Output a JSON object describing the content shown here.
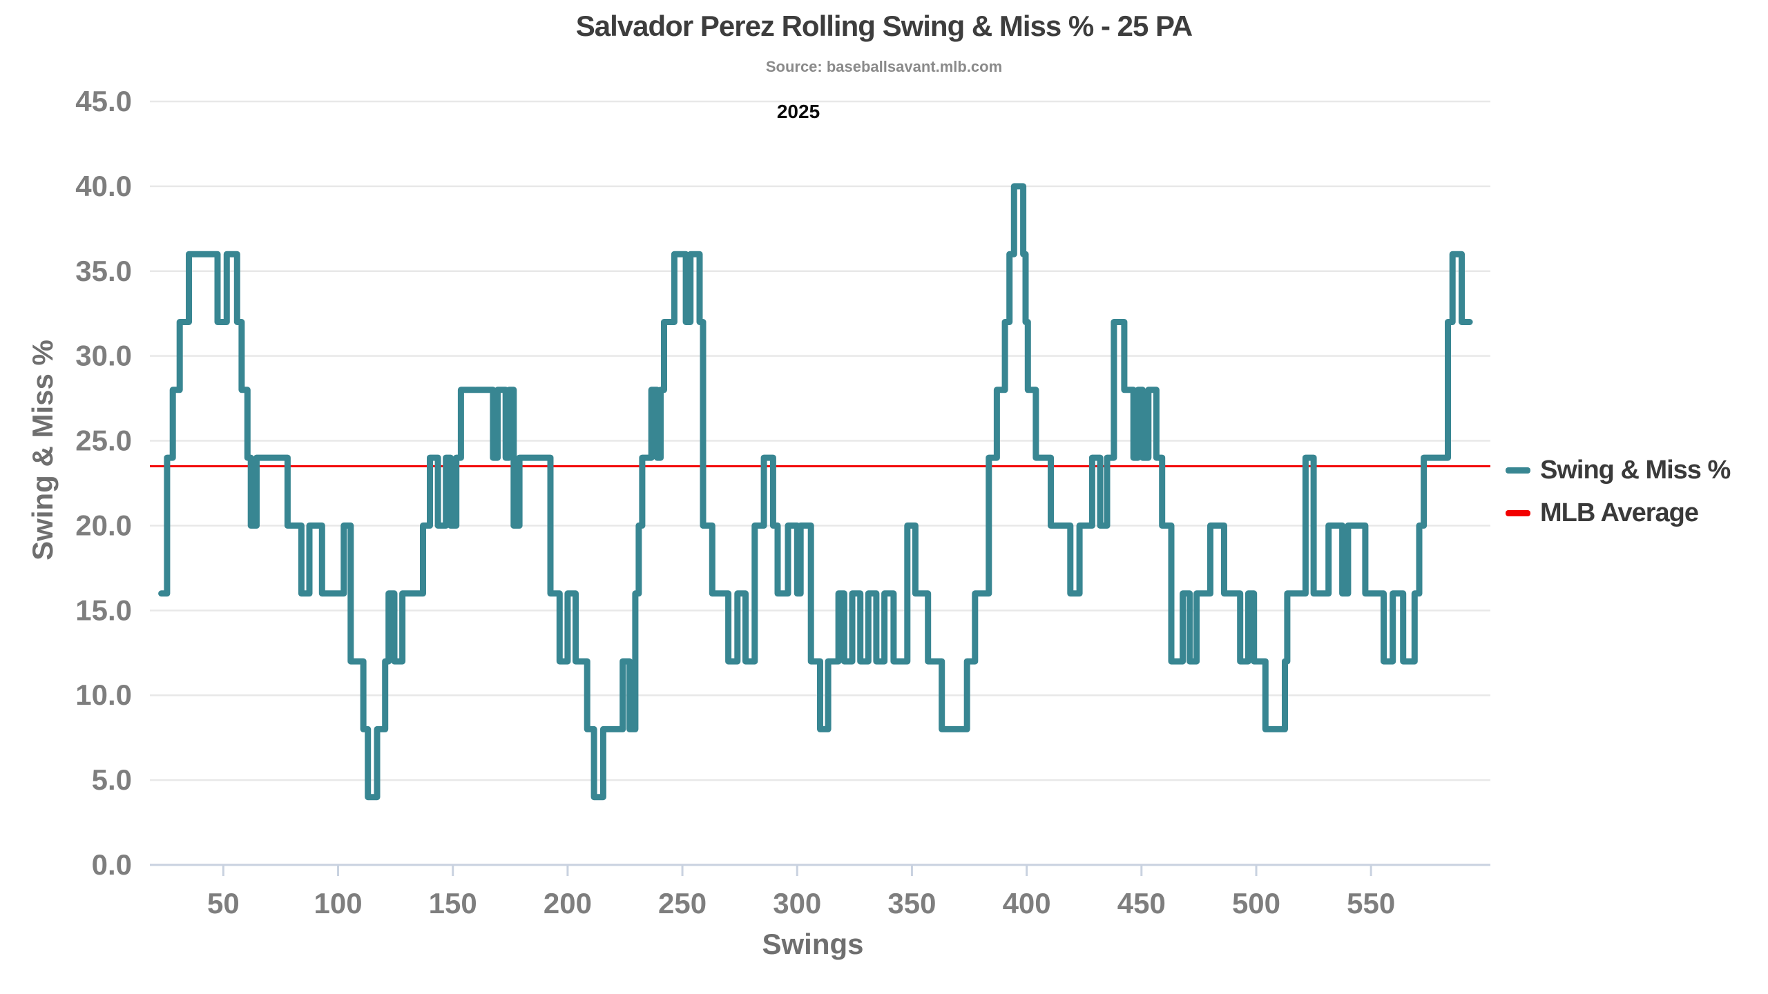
{
  "header": {
    "title": "Salvador Perez Rolling Swing & Miss % - 25 PA",
    "subtitle": "Source: baseballsavant.mlb.com",
    "year_label": "2025"
  },
  "legend": {
    "series_label": "Swing & Miss %",
    "average_label": "MLB Average"
  },
  "colors": {
    "series": "#388692",
    "average": "#f20000",
    "grid": "#e8e8e8",
    "axis": "#c9d2e0",
    "tick_label": "#7e7e7e",
    "title": "#3d3d3d"
  },
  "chart_data": {
    "type": "line",
    "step": "after",
    "title": "Salvador Perez Rolling Swing & Miss % - 25 PA",
    "subtitle": "Source: baseballsavant.mlb.com",
    "annotation": "2025",
    "xlabel": "Swings",
    "ylabel": "Swing & Miss %",
    "xlim": [
      18,
      602
    ],
    "ylim": [
      0,
      45
    ],
    "xticks": [
      50,
      100,
      150,
      200,
      250,
      300,
      350,
      400,
      450,
      500,
      550
    ],
    "yticks": [
      0,
      5,
      10,
      15,
      20,
      25,
      30,
      35,
      40,
      45
    ],
    "ytick_format_decimals": 1,
    "grid": "horizontal",
    "legend_position": "right",
    "mlb_average": 23.5,
    "series_name": "Swing & Miss %",
    "average_name": "MLB Average",
    "segments": [
      [
        23,
        16
      ],
      [
        25.5,
        24
      ],
      [
        28,
        28
      ],
      [
        31,
        32
      ],
      [
        35,
        36
      ],
      [
        47.5,
        32
      ],
      [
        51.5,
        36
      ],
      [
        56,
        32
      ],
      [
        58,
        28
      ],
      [
        60.5,
        24
      ],
      [
        62,
        20
      ],
      [
        64.5,
        24
      ],
      [
        78,
        20
      ],
      [
        84,
        16
      ],
      [
        87.5,
        20
      ],
      [
        93,
        16
      ],
      [
        102.5,
        20
      ],
      [
        105.5,
        12
      ],
      [
        111,
        8
      ],
      [
        113,
        4
      ],
      [
        117,
        8
      ],
      [
        120.5,
        12
      ],
      [
        122,
        16
      ],
      [
        124.5,
        12
      ],
      [
        128,
        16
      ],
      [
        137,
        20
      ],
      [
        140,
        24
      ],
      [
        143.5,
        20
      ],
      [
        147,
        24
      ],
      [
        149,
        20
      ],
      [
        151.5,
        24
      ],
      [
        153.5,
        28
      ],
      [
        167.5,
        24
      ],
      [
        169.5,
        28
      ],
      [
        173,
        24
      ],
      [
        174.5,
        28
      ],
      [
        176.5,
        20
      ],
      [
        179,
        24
      ],
      [
        192.5,
        16
      ],
      [
        196.5,
        12
      ],
      [
        200,
        16
      ],
      [
        203.5,
        12
      ],
      [
        208.5,
        8
      ],
      [
        211.5,
        4
      ],
      [
        215.5,
        8
      ],
      [
        224,
        12
      ],
      [
        227,
        8
      ],
      [
        229.5,
        16
      ],
      [
        231,
        20
      ],
      [
        232.5,
        24
      ],
      [
        236.5,
        28
      ],
      [
        239,
        24
      ],
      [
        240.5,
        28
      ],
      [
        242,
        32
      ],
      [
        246.5,
        36
      ],
      [
        251.5,
        32
      ],
      [
        253.5,
        36
      ],
      [
        257.5,
        32
      ],
      [
        259,
        20
      ],
      [
        263,
        16
      ],
      [
        270,
        12
      ],
      [
        274,
        16
      ],
      [
        277.5,
        12
      ],
      [
        281.5,
        20
      ],
      [
        285.5,
        24
      ],
      [
        289.5,
        20
      ],
      [
        291.5,
        16
      ],
      [
        296,
        20
      ],
      [
        300,
        16
      ],
      [
        301.5,
        20
      ],
      [
        306,
        12
      ],
      [
        310,
        8
      ],
      [
        313.5,
        12
      ],
      [
        318,
        16
      ],
      [
        320.5,
        12
      ],
      [
        324,
        16
      ],
      [
        327.5,
        12
      ],
      [
        331,
        16
      ],
      [
        334.5,
        12
      ],
      [
        338,
        16
      ],
      [
        342,
        12
      ],
      [
        348,
        20
      ],
      [
        351.5,
        16
      ],
      [
        357,
        12
      ],
      [
        363,
        8
      ],
      [
        374,
        12
      ],
      [
        377.5,
        16
      ],
      [
        383.5,
        24
      ],
      [
        387,
        28
      ],
      [
        390.5,
        32
      ],
      [
        392.5,
        36
      ],
      [
        394.5,
        40
      ],
      [
        398.5,
        36
      ],
      [
        399.5,
        32
      ],
      [
        400.5,
        28
      ],
      [
        404,
        24
      ],
      [
        410.5,
        20
      ],
      [
        419,
        16
      ],
      [
        423,
        20
      ],
      [
        428.5,
        24
      ],
      [
        432,
        20
      ],
      [
        435,
        24
      ],
      [
        438,
        32
      ],
      [
        442.5,
        28
      ],
      [
        446.5,
        24
      ],
      [
        448.5,
        28
      ],
      [
        450.5,
        24
      ],
      [
        453,
        28
      ],
      [
        456.5,
        24
      ],
      [
        459,
        20
      ],
      [
        463,
        12
      ],
      [
        468,
        16
      ],
      [
        471,
        12
      ],
      [
        474,
        16
      ],
      [
        480,
        20
      ],
      [
        486,
        16
      ],
      [
        493,
        12
      ],
      [
        496.5,
        16
      ],
      [
        499,
        12
      ],
      [
        504,
        8
      ],
      [
        512.5,
        12
      ],
      [
        513.5,
        16
      ],
      [
        521.5,
        24
      ],
      [
        525,
        16
      ],
      [
        531.5,
        20
      ],
      [
        537.5,
        16
      ],
      [
        540,
        20
      ],
      [
        547.5,
        16
      ],
      [
        555.5,
        12
      ],
      [
        559.5,
        16
      ],
      [
        564,
        12
      ],
      [
        569,
        16
      ],
      [
        571,
        20
      ],
      [
        573,
        24
      ],
      [
        583.5,
        32
      ],
      [
        585.5,
        36
      ],
      [
        589.5,
        32
      ]
    ],
    "end_x": 593
  }
}
